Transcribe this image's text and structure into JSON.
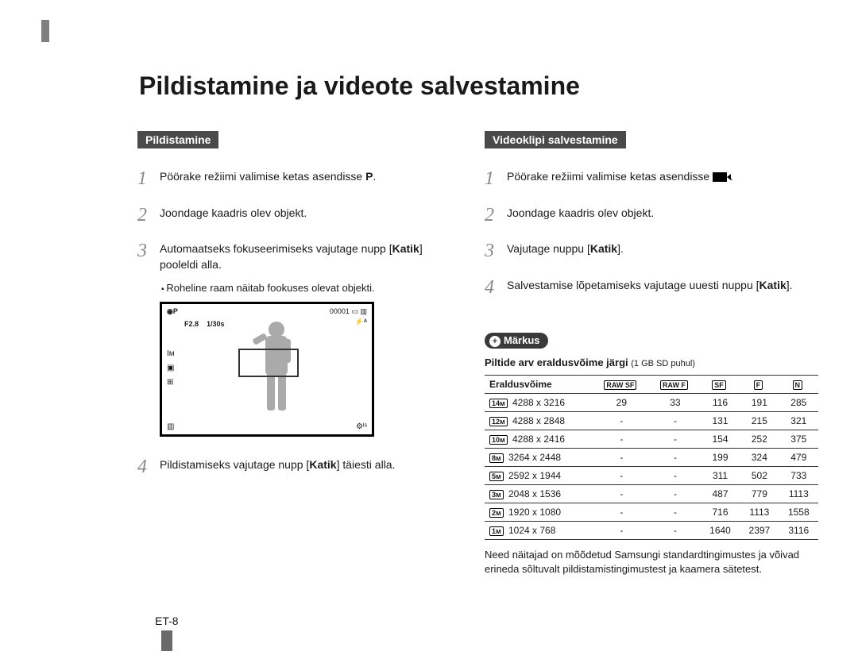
{
  "page_number": "ET-8",
  "title": "Pildistamine ja videote salvestamine",
  "left": {
    "heading": "Pildistamine",
    "steps": [
      {
        "n": "1",
        "html": "Pöörake režiimi valimise ketas asendisse <span class='mode-icon' data-name='mode-p-icon' data-interactable='false'>P</span>."
      },
      {
        "n": "2",
        "html": "Joondage kaadris olev objekt."
      },
      {
        "n": "3",
        "html": "Automaatseks fokuseerimiseks vajutage nupp [<b>Katik</b>] pooleldi alla."
      }
    ],
    "substep": "Roheline raam näitab fookuses olevat objekti.",
    "step4": {
      "n": "4",
      "html": "Pildistamiseks vajutage nupp [<b>Katik</b>] täiesti alla."
    },
    "screen": {
      "top_left_icon": "◉P",
      "f": "F2.8",
      "shutter": "1/30s",
      "counter": "00001",
      "raw": "▭",
      "battery": "▥",
      "flash": "⚡ᴬ",
      "left_icons": "Iᴍ\n▣\n⊞",
      "bottom_left": "▥",
      "bottom_right": "⚙ᴵˢ"
    }
  },
  "right": {
    "heading": "Videoklipi salvestamine",
    "steps": [
      {
        "n": "1",
        "html": "Pöörake režiimi valimise ketas asendisse <span class='camcorder-icon' data-name='camcorder-icon' data-interactable='false'></span> ."
      },
      {
        "n": "2",
        "html": "Joondage kaadris olev objekt."
      },
      {
        "n": "3",
        "html": "Vajutage nuppu [<b>Katik</b>]."
      },
      {
        "n": "4",
        "html": "Salvestamise lõpetamiseks vajutage uuesti nuppu [<b>Katik</b>]."
      }
    ],
    "markus": "Märkus",
    "note_title_bold": "Piltide arv eraldusvõime järgi",
    "note_title_small": "(1 GB SD puhul)",
    "table": {
      "head": [
        "Eraldusvõime",
        "RAW SF",
        "RAW F",
        "SF",
        "F",
        "N"
      ],
      "size_icons": [
        "14ᴍ",
        "12ᴍ",
        "10ᴍ",
        "8ᴍ",
        "5ᴍ",
        "3ᴍ",
        "2ᴍ",
        "1ᴍ"
      ],
      "rows": [
        [
          "4288 x 3216",
          "29",
          "33",
          "116",
          "191",
          "285"
        ],
        [
          "4288 x 2848",
          "-",
          "-",
          "131",
          "215",
          "321"
        ],
        [
          "4288 x 2416",
          "-",
          "-",
          "154",
          "252",
          "375"
        ],
        [
          "3264 x 2448",
          "-",
          "-",
          "199",
          "324",
          "479"
        ],
        [
          "2592 x 1944",
          "-",
          "-",
          "311",
          "502",
          "733"
        ],
        [
          "2048 x 1536",
          "-",
          "-",
          "487",
          "779",
          "1113"
        ],
        [
          "1920 x 1080",
          "-",
          "-",
          "716",
          "1113",
          "1558"
        ],
        [
          "1024 x 768",
          "-",
          "-",
          "1640",
          "2397",
          "3116"
        ]
      ]
    },
    "footnote": "Need näitajad on mõõdetud Samsungi standardtingimustes ja võivad erineda sõltuvalt pildistamistingimustest ja kaamera sätetest."
  },
  "colors": {
    "heading_bg": "#4a4a4a",
    "heading_fg": "#ffffff",
    "stepnum": "#888888",
    "border": "#333333"
  }
}
